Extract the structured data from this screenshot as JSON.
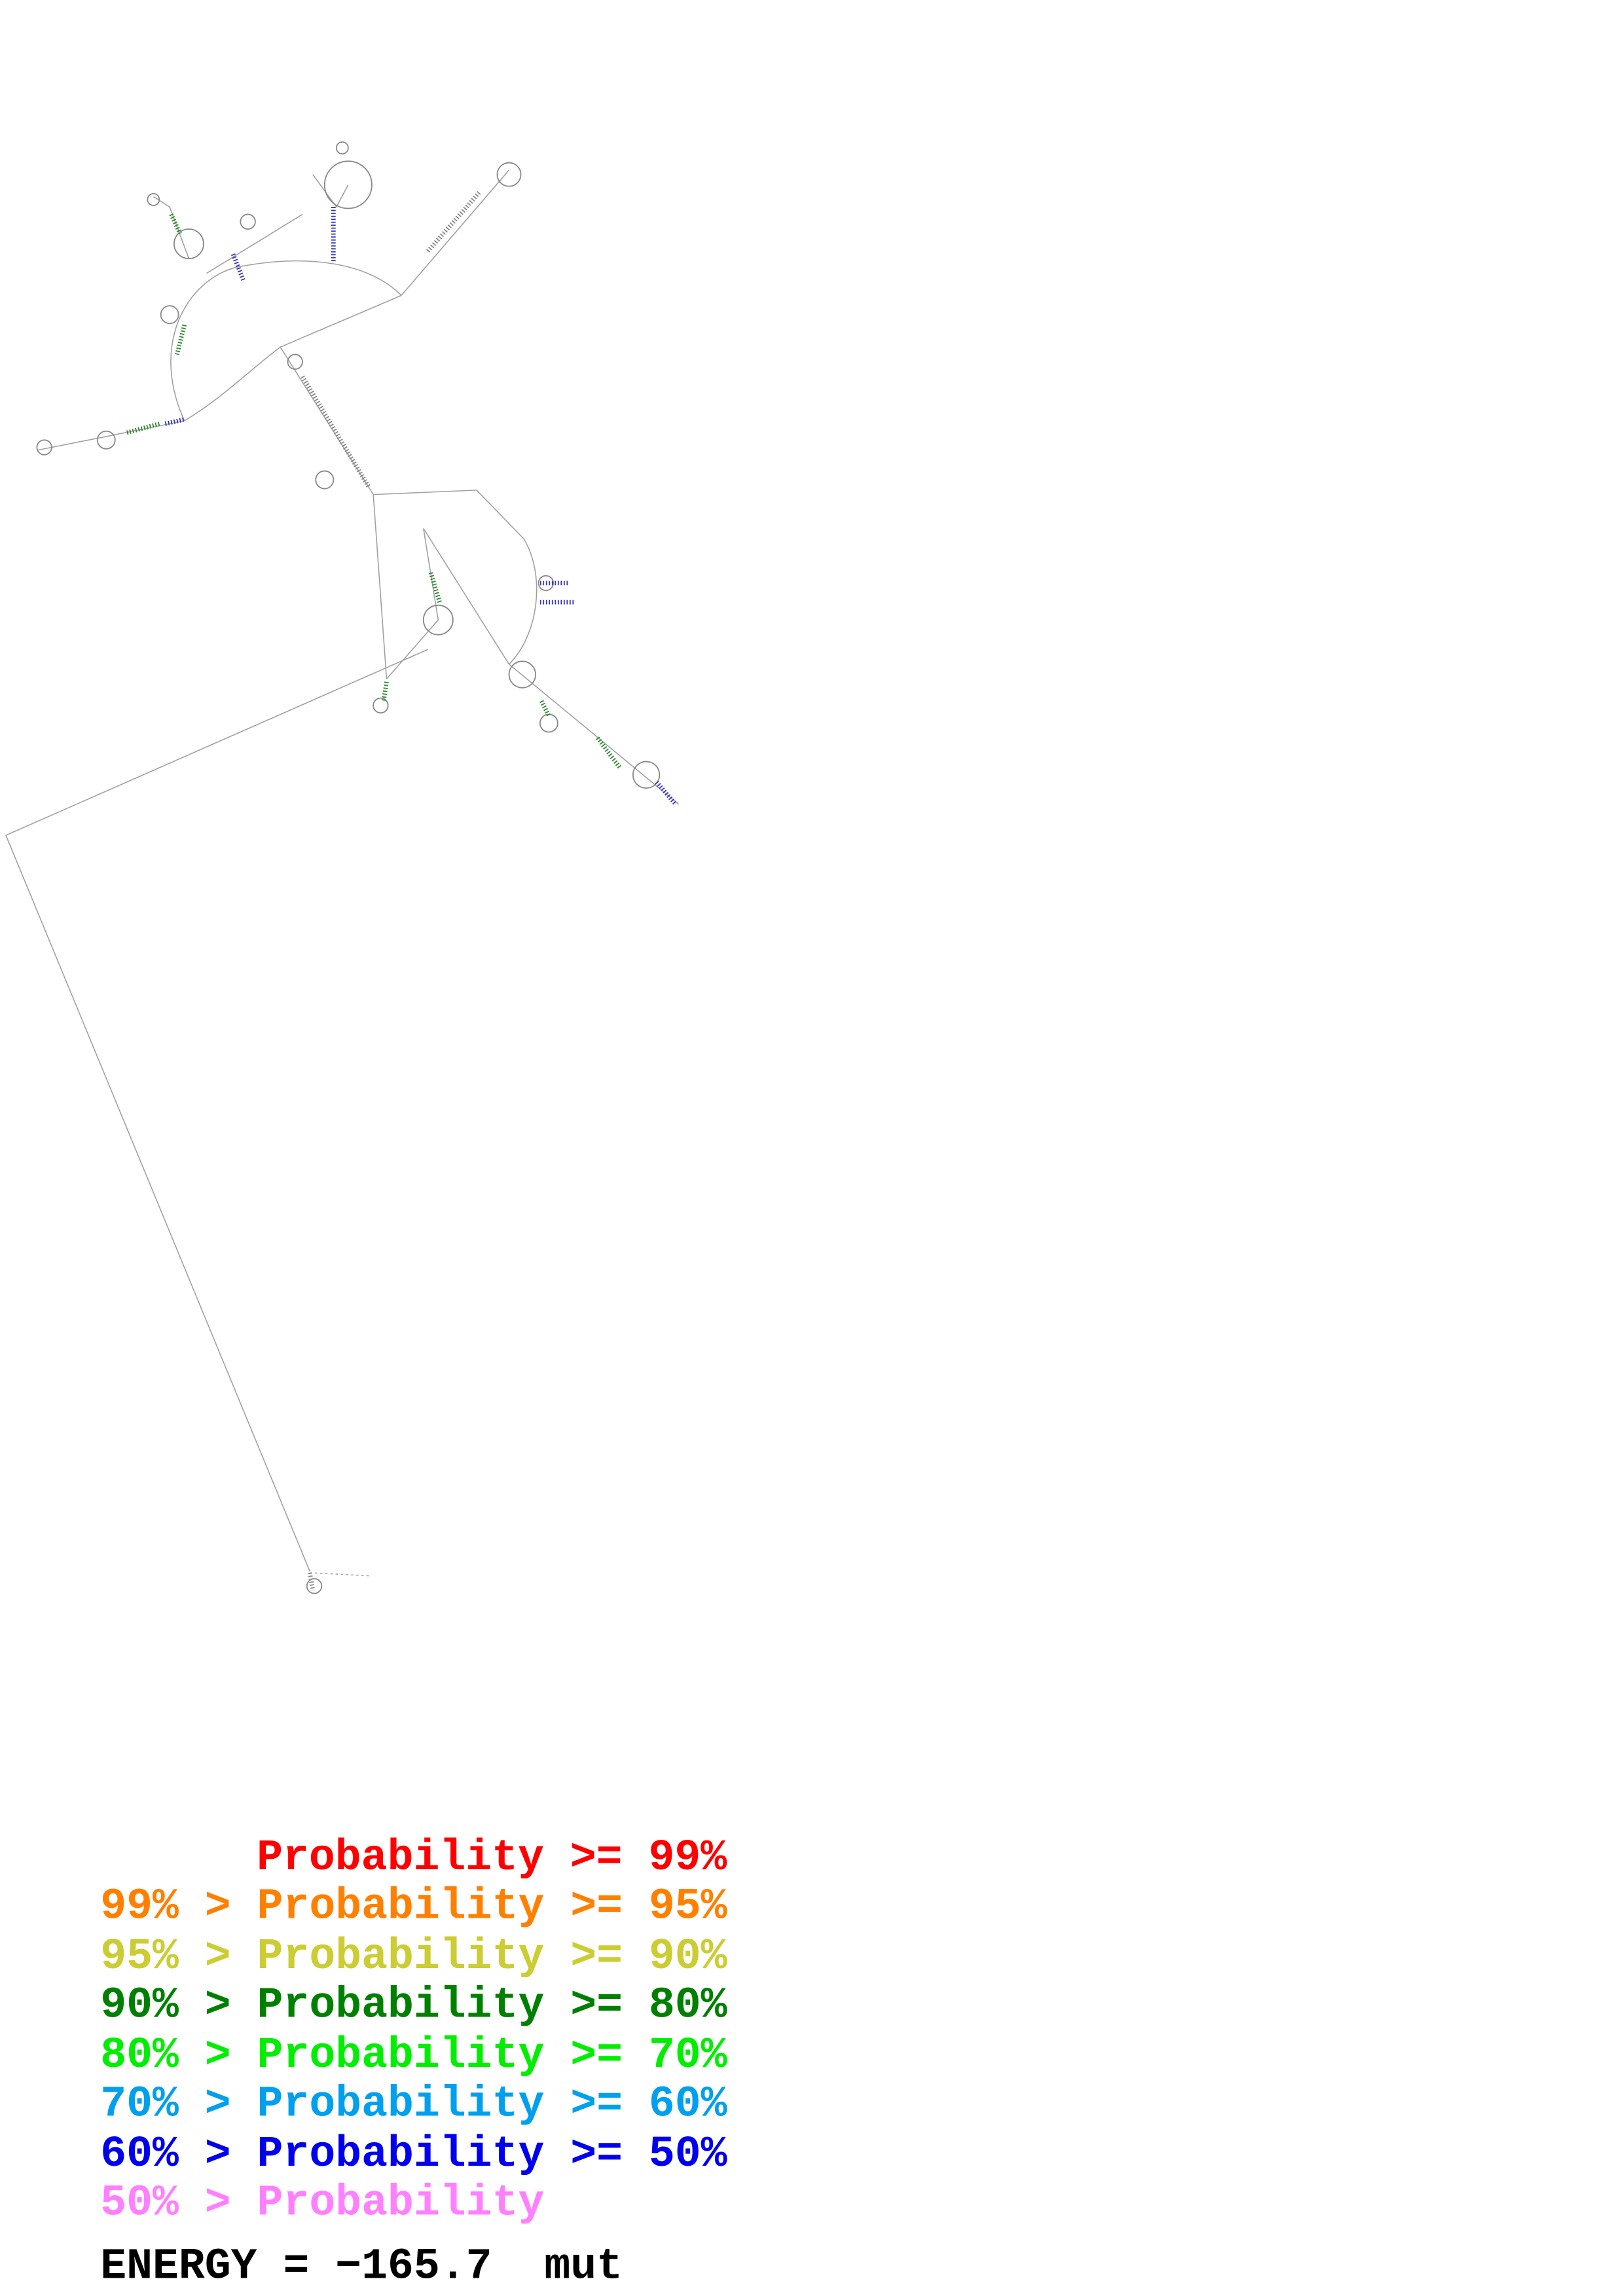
{
  "legend": {
    "lines": [
      "Probability >= 99%",
      "99% > Probability >= 95%",
      "95% > Probability >= 90%",
      "90% > Probability >= 80%",
      "80% > Probability >= 70%",
      "70% > Probability >= 60%",
      "60% > Probability >= 50%",
      "50% > Probability"
    ]
  },
  "energy": "ENERGY = −165.7  mut"
}
